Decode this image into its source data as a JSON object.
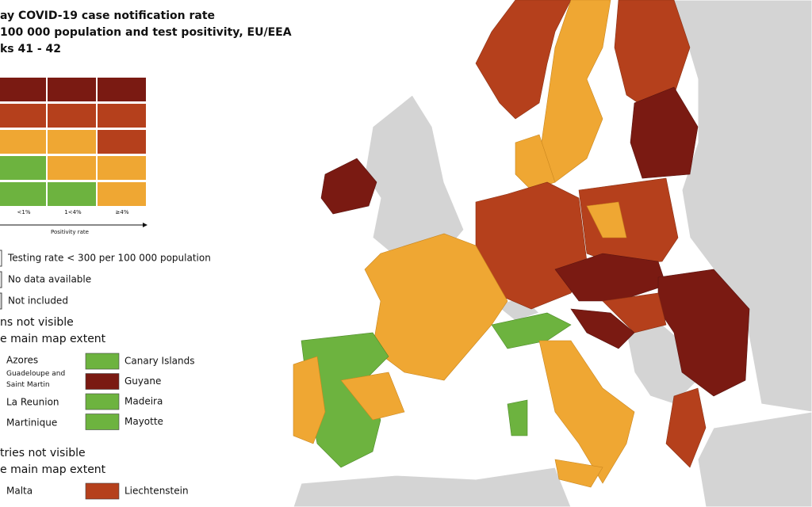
{
  "header": {
    "title_lines": [
      "ay COVID-19 case notification rate",
      "100 000 population and test positivity, EU/EEA",
      "ks 41 - 42"
    ]
  },
  "legend": {
    "columns": [
      "<1%",
      "1<4%",
      "≥4%"
    ],
    "axis_label": "Positivity rate",
    "other": [
      "Testing rate < 300 per 100 000 population",
      "No data available",
      "Not included"
    ]
  },
  "regions": {
    "heading_lines": [
      "ns not visible",
      "e main map extent"
    ],
    "left": [
      "Azores",
      "Guadeloupe and Saint Martin",
      "La Reunion",
      "Martinique"
    ],
    "right": [
      {
        "label": "Canary Islands",
        "color": "#6db33f"
      },
      {
        "label": "Guyane",
        "color": "#7a1a12"
      },
      {
        "label": "Madeira",
        "color": "#6db33f"
      },
      {
        "label": "Mayotte",
        "color": "#6db33f"
      }
    ]
  },
  "countries": {
    "heading_lines": [
      "tries not visible",
      "e main map extent"
    ],
    "left": [
      "Malta"
    ],
    "right": [
      {
        "label": "Liechtenstein",
        "color": "#b5401c"
      }
    ]
  }
}
